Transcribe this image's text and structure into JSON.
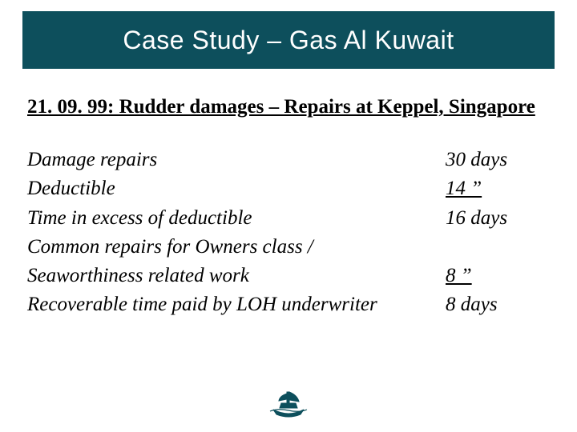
{
  "title": "Case Study – Gas Al Kuwait",
  "title_bar_color": "#0d4f5c",
  "subtitle": "21. 09. 99: Rudder damages – Repairs at Keppel, Singapore",
  "rows": [
    {
      "label": "Damage repairs",
      "value": "30 days",
      "underline": false,
      "indent": false
    },
    {
      "label": "Deductible",
      "value": "14    ”  ",
      "underline": true,
      "indent": false
    },
    {
      "label": "Time in excess of deductible",
      "value": "16 days",
      "underline": false,
      "indent": false
    },
    {
      "label": "Common repairs for Owners class /",
      "value": "",
      "underline": false,
      "indent": false
    },
    {
      "label": "Seaworthiness related work",
      "value": " 8    ”    ",
      "underline": true,
      "indent": true
    },
    {
      "label": "Recoverable time paid by LOH underwriter",
      "value": " 8 days",
      "underline": false,
      "indent": true
    }
  ],
  "logo_color": "#0d4f5c"
}
